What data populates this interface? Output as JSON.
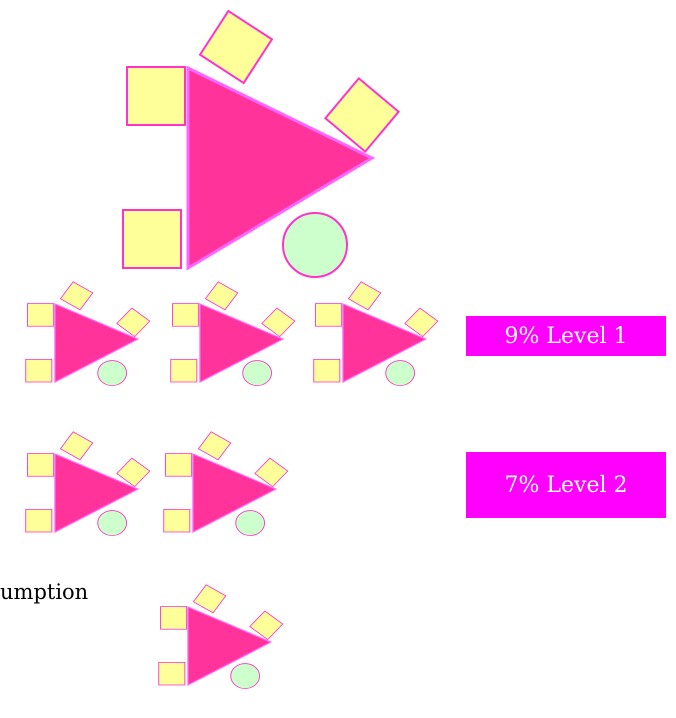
{
  "levels": [
    "9% Level 1",
    "7% Level 2"
  ],
  "caption": "umption"
}
